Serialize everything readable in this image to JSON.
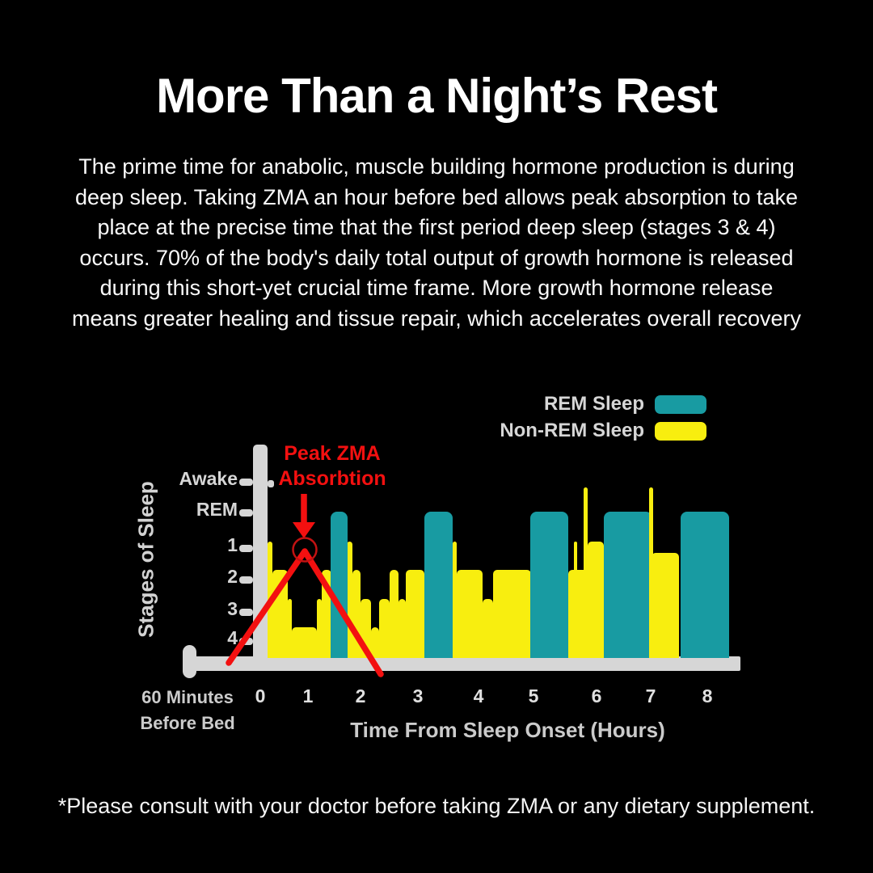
{
  "title": "More Than a Night’s Rest",
  "intro": {
    "lines": [
      "The prime time for anabolic, muscle building hormone production is during",
      "deep sleep. Taking ZMA an hour before bed allows peak absorption to take",
      "place at the precise time that the first period deep sleep (stages 3 & 4)",
      "occurs. 70% of the body's daily total output of growth hormone is released",
      "during this short-yet crucial time frame. More growth hormone release",
      "means greater healing and tissue repair, which accelerates overall recovery"
    ]
  },
  "legend": {
    "items": [
      {
        "label": "REM Sleep",
        "color": "#189ba2"
      },
      {
        "label": "Non-REM Sleep",
        "color": "#f8ee0f"
      }
    ]
  },
  "chart_data": {
    "type": "area",
    "subtype": "hypnogram-step-silhouette",
    "ylabel": "Stages of Sleep",
    "xlabel": "Time From Sleep Onset (Hours)",
    "x_start_label": [
      "60 Minutes",
      "Before Bed"
    ],
    "x_ticks": [
      "0",
      "1",
      "2",
      "3",
      "4",
      "5",
      "6",
      "7",
      "8"
    ],
    "y_tick_labels": [
      "Awake",
      "REM",
      "1",
      "2",
      "3",
      "4"
    ],
    "y_order_top_to_bottom": [
      "Awake",
      "REM",
      "1",
      "2",
      "3",
      "4"
    ],
    "annotation": {
      "lines": [
        "Peak ZMA",
        "Absorbtion"
      ],
      "target_hr": 0.8,
      "target_stage": "1"
    },
    "colors": {
      "rem": "#189ba2",
      "nrem": "#f8ee0f",
      "axis": "#d6d6d6",
      "annotation": "#f31010",
      "annotation_circle": "#c21212"
    },
    "segments": [
      {
        "type": "nrem",
        "from_hr": 0.15,
        "to_hr": 0.25,
        "stage": "1"
      },
      {
        "type": "nrem",
        "from_hr": 0.25,
        "to_hr": 0.58,
        "stage": "2"
      },
      {
        "type": "nrem",
        "from_hr": 0.58,
        "to_hr": 0.66,
        "stage": "3"
      },
      {
        "type": "nrem",
        "from_hr": 0.66,
        "to_hr": 1.17,
        "stage": "4"
      },
      {
        "type": "nrem",
        "from_hr": 1.17,
        "to_hr": 1.26,
        "stage": "3"
      },
      {
        "type": "nrem",
        "from_hr": 1.26,
        "to_hr": 1.44,
        "stage": "2"
      },
      {
        "type": "rem",
        "from_hr": 1.43,
        "to_hr": 1.75,
        "stage": "R"
      },
      {
        "type": "nrem",
        "from_hr": 1.74,
        "to_hr": 1.85,
        "stage": "1"
      },
      {
        "type": "nrem",
        "from_hr": 1.85,
        "to_hr": 2.0,
        "stage": "2"
      },
      {
        "type": "nrem",
        "from_hr": 2.0,
        "to_hr": 2.18,
        "stage": "3"
      },
      {
        "type": "nrem",
        "from_hr": 2.18,
        "to_hr": 2.32,
        "stage": "4"
      },
      {
        "type": "nrem",
        "from_hr": 2.32,
        "to_hr": 2.51,
        "stage": "3"
      },
      {
        "type": "nrem",
        "from_hr": 2.51,
        "to_hr": 2.66,
        "stage": "2"
      },
      {
        "type": "nrem",
        "from_hr": 2.66,
        "to_hr": 2.79,
        "stage": "3"
      },
      {
        "type": "nrem",
        "from_hr": 2.79,
        "to_hr": 3.11,
        "stage": "2"
      },
      {
        "type": "rem",
        "from_hr": 3.1,
        "to_hr": 3.57,
        "stage": "R"
      },
      {
        "type": "nrem",
        "from_hr": 3.57,
        "to_hr": 3.64,
        "stage": "1"
      },
      {
        "type": "nrem",
        "from_hr": 3.64,
        "to_hr": 4.07,
        "stage": "2"
      },
      {
        "type": "nrem",
        "from_hr": 4.07,
        "to_hr": 4.26,
        "stage": "3"
      },
      {
        "type": "nrem",
        "from_hr": 4.26,
        "to_hr": 4.95,
        "stage": "2"
      },
      {
        "type": "rem",
        "from_hr": 4.94,
        "to_hr": 5.55,
        "stage": "R"
      },
      {
        "type": "nrem",
        "from_hr": 5.55,
        "to_hr": 5.87,
        "stage": "2"
      },
      {
        "type": "nrem",
        "from_hr": 5.86,
        "to_hr": 6.13,
        "stage": "1"
      },
      {
        "type": "rem",
        "from_hr": 6.13,
        "to_hr": 7.03,
        "stage": "R"
      },
      {
        "type": "nrem",
        "from_hr": 7.02,
        "to_hr": 7.5,
        "stage": "1.4"
      },
      {
        "type": "rem",
        "from_hr": 7.53,
        "to_hr": 8.39,
        "stage": "R"
      },
      {
        "type": "spike",
        "from_hr": 5.64,
        "to_hr": 5.69,
        "stage": "1"
      },
      {
        "type": "spike",
        "from_hr": 5.8,
        "to_hr": 5.86,
        "stage": "W"
      },
      {
        "type": "spike",
        "from_hr": 6.97,
        "to_hr": 7.04,
        "stage": "W"
      }
    ]
  },
  "footer": "*Please consult with your doctor before taking ZMA or any dietary supplement."
}
